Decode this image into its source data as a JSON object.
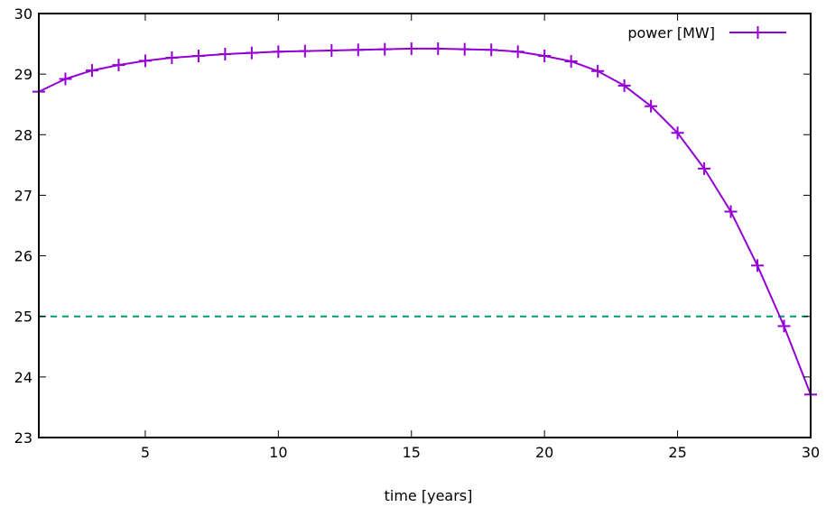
{
  "chart_data": {
    "type": "line",
    "title": "",
    "xlabel": "time [years]",
    "ylabel": "",
    "xlim": [
      1,
      30
    ],
    "ylim": [
      23,
      30
    ],
    "x_ticks": [
      5,
      10,
      15,
      20,
      25,
      30
    ],
    "y_ticks": [
      23,
      24,
      25,
      26,
      27,
      28,
      29,
      30
    ],
    "legend_position": "top-right",
    "grid": false,
    "series": [
      {
        "name": "power [MW]",
        "color": "#9400d3",
        "marker": "plus",
        "x": [
          1,
          2,
          3,
          4,
          5,
          6,
          7,
          8,
          9,
          10,
          11,
          12,
          13,
          14,
          15,
          16,
          17,
          18,
          19,
          20,
          21,
          22,
          23,
          24,
          25,
          26,
          27,
          28,
          29,
          30
        ],
        "values": [
          28.71,
          28.92,
          29.06,
          29.15,
          29.22,
          29.27,
          29.3,
          29.33,
          29.35,
          29.37,
          29.38,
          29.39,
          29.4,
          29.41,
          29.42,
          29.42,
          29.41,
          29.4,
          29.37,
          29.3,
          29.21,
          29.05,
          28.81,
          28.47,
          28.03,
          27.44,
          26.73,
          25.84,
          24.84,
          23.71
        ]
      }
    ],
    "reference_lines": [
      {
        "y": 25,
        "color": "#009e73",
        "style": "dashed"
      }
    ]
  }
}
